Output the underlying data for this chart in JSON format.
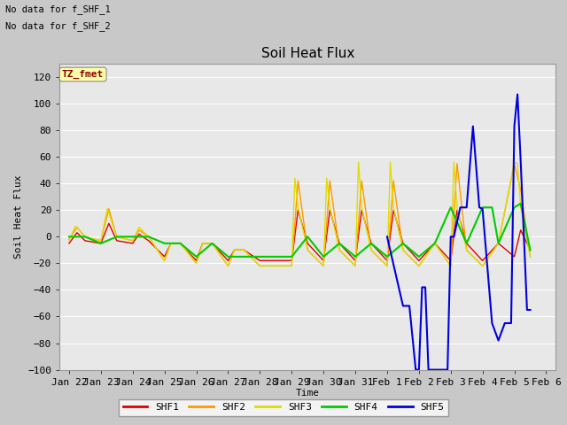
{
  "title": "Soil Heat Flux",
  "xlabel": "Time",
  "ylabel": "Soil Heat Flux",
  "ylim": [
    -100,
    130
  ],
  "yticks": [
    -100,
    -80,
    -60,
    -40,
    -20,
    0,
    20,
    40,
    60,
    80,
    100,
    120
  ],
  "text_no_data": [
    "No data for f_SHF_1",
    "No data for f_SHF_2"
  ],
  "tz_label": "TZ_fmet",
  "fig_bg": "#c8c8c8",
  "plot_bg": "#e8e8e8",
  "grid_color": "#ffffff",
  "legend_entries": [
    "SHF1",
    "SHF2",
    "SHF3",
    "SHF4",
    "SHF5"
  ],
  "legend_colors": [
    "#dd0000",
    "#ff9900",
    "#dddd00",
    "#00cc00",
    "#0000dd"
  ],
  "x_tick_labels": [
    "Jan 22",
    "Jan 23",
    "Jan 24",
    "Jan 25",
    "Jan 26",
    "Jan 27",
    "Jan 28",
    "Jan 29",
    "Jan 30",
    "Jan 31",
    "Feb 1",
    "Feb 2",
    "Feb 3",
    "Feb 4",
    "Feb 5",
    "Feb 6"
  ],
  "shf1_x": [
    0.0,
    0.25,
    0.5,
    1.0,
    1.25,
    1.5,
    2.0,
    2.2,
    2.5,
    3.0,
    3.2,
    3.5,
    4.0,
    4.2,
    4.5,
    5.0,
    5.2,
    5.5,
    6.0,
    6.2,
    6.5,
    7.0,
    7.2,
    7.5,
    8.0,
    8.2,
    8.5,
    9.0,
    9.2,
    9.5,
    10.0,
    10.2,
    10.5,
    11.0,
    11.5,
    12.0,
    12.2,
    12.5,
    13.0,
    13.5,
    14.0,
    14.2,
    14.5
  ],
  "shf1_y": [
    -5,
    3,
    -3,
    -5,
    10,
    -3,
    -5,
    2,
    -3,
    -15,
    -5,
    -5,
    -18,
    -5,
    -5,
    -18,
    -10,
    -10,
    -18,
    -18,
    -18,
    -18,
    20,
    -5,
    -18,
    20,
    -5,
    -18,
    20,
    -5,
    -18,
    20,
    -5,
    -18,
    -5,
    -18,
    20,
    -5,
    -18,
    -5,
    -15,
    5,
    -10
  ],
  "shf2_x": [
    0.0,
    0.25,
    0.5,
    1.0,
    1.25,
    1.5,
    2.0,
    2.2,
    2.5,
    3.0,
    3.2,
    3.5,
    4.0,
    4.2,
    4.5,
    5.0,
    5.2,
    5.5,
    6.0,
    6.2,
    6.5,
    7.0,
    7.2,
    7.5,
    8.0,
    8.2,
    8.5,
    9.0,
    9.2,
    9.5,
    10.0,
    10.2,
    10.5,
    11.0,
    11.5,
    12.0,
    12.2,
    12.5,
    13.0,
    13.5,
    14.0,
    14.2,
    14.5
  ],
  "shf2_y": [
    -2,
    7,
    0,
    -3,
    21,
    0,
    -3,
    5,
    0,
    -18,
    -5,
    -5,
    -20,
    -5,
    -5,
    -22,
    -10,
    -10,
    -22,
    -22,
    -22,
    -22,
    42,
    -10,
    -22,
    42,
    -10,
    -22,
    42,
    -10,
    -22,
    42,
    -10,
    -22,
    -5,
    -22,
    55,
    -10,
    -22,
    -5,
    55,
    35,
    -15
  ],
  "shf3_x": [
    0.0,
    0.2,
    0.5,
    1.0,
    1.2,
    1.5,
    2.0,
    2.2,
    2.5,
    3.0,
    3.2,
    3.5,
    4.0,
    4.2,
    4.5,
    5.0,
    5.2,
    5.5,
    6.0,
    6.2,
    6.5,
    7.0,
    7.1,
    7.2,
    7.5,
    8.0,
    8.1,
    8.2,
    8.5,
    9.0,
    9.1,
    9.2,
    9.5,
    10.0,
    10.1,
    10.2,
    10.5,
    11.0,
    11.5,
    12.0,
    12.1,
    12.2,
    12.5,
    13.0,
    13.5,
    14.0,
    14.1,
    14.2,
    14.5
  ],
  "shf3_y": [
    -3,
    8,
    0,
    -3,
    21,
    0,
    -3,
    7,
    0,
    -18,
    -5,
    -5,
    -20,
    -5,
    -5,
    -22,
    -10,
    -10,
    -22,
    -22,
    -22,
    -22,
    44,
    22,
    -10,
    -22,
    44,
    22,
    -10,
    -22,
    56,
    22,
    -10,
    -22,
    56,
    22,
    -10,
    -22,
    -5,
    -22,
    56,
    22,
    -10,
    -22,
    -5,
    56,
    55,
    22,
    -15
  ],
  "shf4_x": [
    0.0,
    0.5,
    1.0,
    1.5,
    2.0,
    2.5,
    3.0,
    3.5,
    4.0,
    4.5,
    5.0,
    5.5,
    6.0,
    6.5,
    7.0,
    7.5,
    8.0,
    8.5,
    9.0,
    9.5,
    10.0,
    10.5,
    11.0,
    11.5,
    12.0,
    12.5,
    13.0,
    13.3,
    13.5,
    14.0,
    14.2,
    14.5
  ],
  "shf4_y": [
    0,
    0,
    -5,
    0,
    0,
    0,
    -5,
    -5,
    -15,
    -5,
    -15,
    -15,
    -15,
    -15,
    -15,
    0,
    -15,
    -5,
    -15,
    -5,
    -15,
    -5,
    -15,
    -5,
    22,
    -5,
    22,
    22,
    -5,
    22,
    25,
    -10
  ],
  "shf5_x": [
    10.0,
    10.5,
    10.7,
    10.9,
    11.0,
    11.1,
    11.2,
    11.3,
    11.5,
    11.7,
    11.9,
    12.0,
    12.1,
    12.3,
    12.5,
    12.7,
    12.9,
    13.0,
    13.3,
    13.5,
    13.7,
    13.9,
    14.0,
    14.1,
    14.2,
    14.4,
    14.5
  ],
  "shf5_y": [
    0,
    -52,
    -52,
    -100,
    -100,
    -38,
    -38,
    -100,
    -100,
    -100,
    -100,
    0,
    0,
    22,
    22,
    83,
    22,
    21,
    -65,
    -78,
    -65,
    -65,
    83,
    107,
    57,
    -55,
    -55
  ]
}
